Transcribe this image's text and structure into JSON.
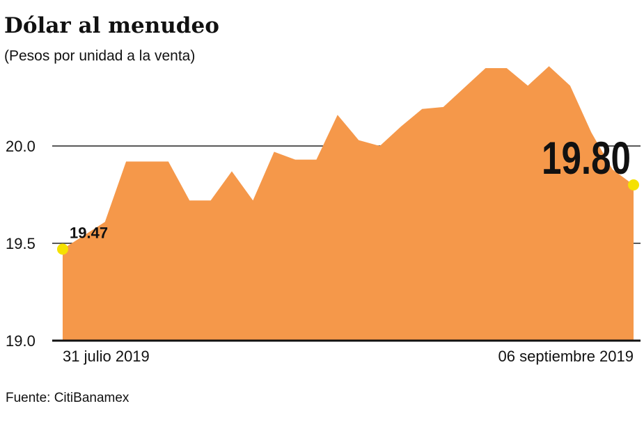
{
  "chart_data": {
    "type": "area",
    "title": "Dólar al menudeo",
    "subtitle": "(Pesos por unidad a la venta)",
    "source": "Fuente: CitiBanamex",
    "categories": [
      "31 julio 2019",
      null,
      null,
      null,
      null,
      null,
      null,
      null,
      null,
      null,
      null,
      null,
      null,
      null,
      null,
      null,
      null,
      null,
      null,
      null,
      null,
      null,
      null,
      null,
      null,
      null,
      null,
      "06 septiembre 2019"
    ],
    "values": [
      19.47,
      19.54,
      19.61,
      19.92,
      19.92,
      19.92,
      19.72,
      19.72,
      19.87,
      19.72,
      19.97,
      19.93,
      19.93,
      20.16,
      20.03,
      20.0,
      20.1,
      20.19,
      20.2,
      20.3,
      20.4,
      20.4,
      20.31,
      20.41,
      20.31,
      20.07,
      19.88,
      19.8
    ],
    "value_labels": [
      "19.47",
      null,
      null,
      null,
      null,
      null,
      null,
      null,
      null,
      null,
      null,
      null,
      null,
      null,
      null,
      null,
      null,
      null,
      null,
      null,
      null,
      null,
      null,
      null,
      null,
      null,
      null,
      "19.80"
    ],
    "color": "#f5984a",
    "marker_color": "#f5e100",
    "ylim": [
      19.0,
      20.5
    ],
    "yticks": [
      {
        "value": 19.0,
        "label": "19.0"
      },
      19.5,
      {
        "value": 20.0,
        "label": "20.0"
      }
    ],
    "grid": true
  }
}
